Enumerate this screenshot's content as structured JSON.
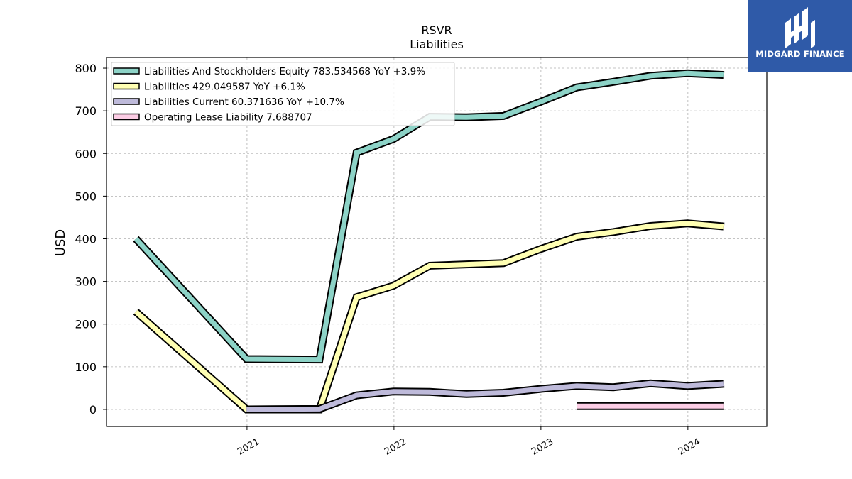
{
  "chart_data": {
    "type": "line",
    "title": "RSVR",
    "subtitle": "Liabilities",
    "xlabel": "",
    "ylabel": "USD",
    "x_ticks": [
      "2021",
      "2022",
      "2023",
      "2024"
    ],
    "y_ticks": [
      0,
      100,
      200,
      300,
      400,
      500,
      600,
      700,
      800
    ],
    "xlim": [
      "2020-01-18",
      "2024-07-15"
    ],
    "ylim": [
      -40,
      825
    ],
    "grid": true,
    "legend_position": "top-left",
    "series": [
      {
        "name": "Liabilities And Stockholders Equity  783.534568 YoY +3.9%",
        "color": "#8dd3c7",
        "x": [
          "2020-03-31",
          "2020-12-31",
          "2021-06-30",
          "2021-09-30",
          "2021-12-31",
          "2022-03-31",
          "2022-06-30",
          "2022-09-30",
          "2022-12-31",
          "2023-03-31",
          "2023-06-30",
          "2023-09-30",
          "2023-12-31",
          "2024-03-31"
        ],
        "values": [
          400,
          118,
          117,
          602,
          634,
          686,
          685,
          688,
          721,
          755,
          768,
          782,
          788,
          784
        ]
      },
      {
        "name": "Liabilities  429.049587 YoY +6.1%",
        "color": "#ffffb3",
        "x": [
          "2020-03-31",
          "2020-12-31",
          "2021-06-30",
          "2021-09-30",
          "2021-12-31",
          "2022-03-31",
          "2022-06-30",
          "2022-09-30",
          "2022-12-31",
          "2023-03-31",
          "2023-06-30",
          "2023-09-30",
          "2023-12-31",
          "2024-03-31"
        ],
        "values": [
          229,
          0,
          0,
          263,
          290,
          337,
          340,
          343,
          376,
          405,
          416,
          430,
          436,
          429
        ]
      },
      {
        "name": "Liabilities Current  60.371636 YoY +10.7%",
        "color": "#bebada",
        "x": [
          "2020-12-31",
          "2021-06-30",
          "2021-09-30",
          "2021-12-31",
          "2022-03-31",
          "2022-06-30",
          "2022-09-30",
          "2022-12-31",
          "2023-03-31",
          "2023-06-30",
          "2023-09-30",
          "2023-12-31",
          "2024-03-31"
        ],
        "values": [
          0,
          1,
          33,
          42,
          41,
          36,
          39,
          48,
          55,
          52,
          61,
          55,
          60
        ]
      },
      {
        "name": "Operating Lease Liability  7.688707",
        "color": "#fccde5",
        "x": [
          "2023-03-31",
          "2023-06-30",
          "2023-09-30",
          "2023-12-31",
          "2024-03-31"
        ],
        "values": [
          7.7,
          7.7,
          7.7,
          7.7,
          7.7
        ]
      }
    ]
  },
  "logo": {
    "text": "MIDGARD FINANCE",
    "icon": "midgard-logo-icon",
    "color": "#2f5aa8"
  }
}
